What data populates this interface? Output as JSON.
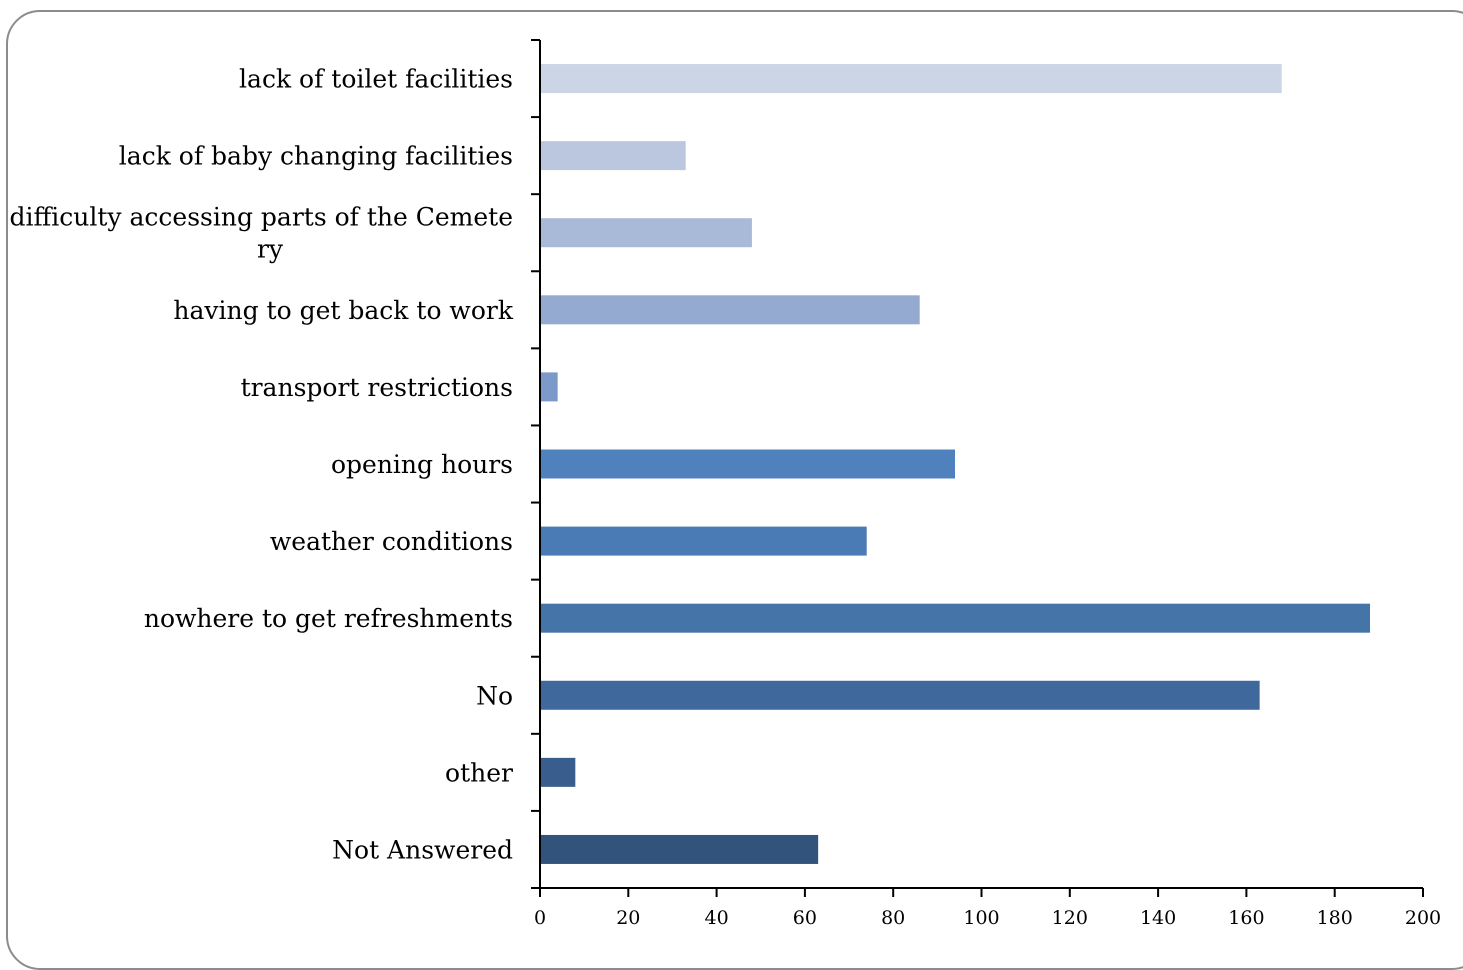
{
  "chart_data": {
    "type": "bar",
    "orientation": "horizontal",
    "categories": [
      [
        "lack of toilet facilities"
      ],
      [
        "lack of baby changing facilities"
      ],
      [
        "difficulty accessing parts of the Cemete",
        "ry"
      ],
      [
        "having to get back to work"
      ],
      [
        "transport restrictions"
      ],
      [
        "opening hours"
      ],
      [
        "weather conditions"
      ],
      [
        "nowhere to get refreshments"
      ],
      [
        "No"
      ],
      [
        "other"
      ],
      [
        "Not Answered"
      ]
    ],
    "values": [
      168,
      33,
      48,
      86,
      4,
      94,
      74,
      188,
      163,
      8,
      63
    ],
    "colors": [
      "#ccd5e6",
      "#bac7df",
      "#a9b9d8",
      "#94aad0",
      "#7b99c9",
      "#4f81bd",
      "#4a7bb5",
      "#4574a9",
      "#3f699c",
      "#395e8d",
      "#32537c"
    ],
    "xlim": [
      0,
      200
    ],
    "xticks": [
      0,
      20,
      40,
      60,
      80,
      100,
      120,
      140,
      160,
      180,
      200
    ],
    "grid": false,
    "legend": "none",
    "title": "",
    "xlabel": "",
    "ylabel": ""
  }
}
